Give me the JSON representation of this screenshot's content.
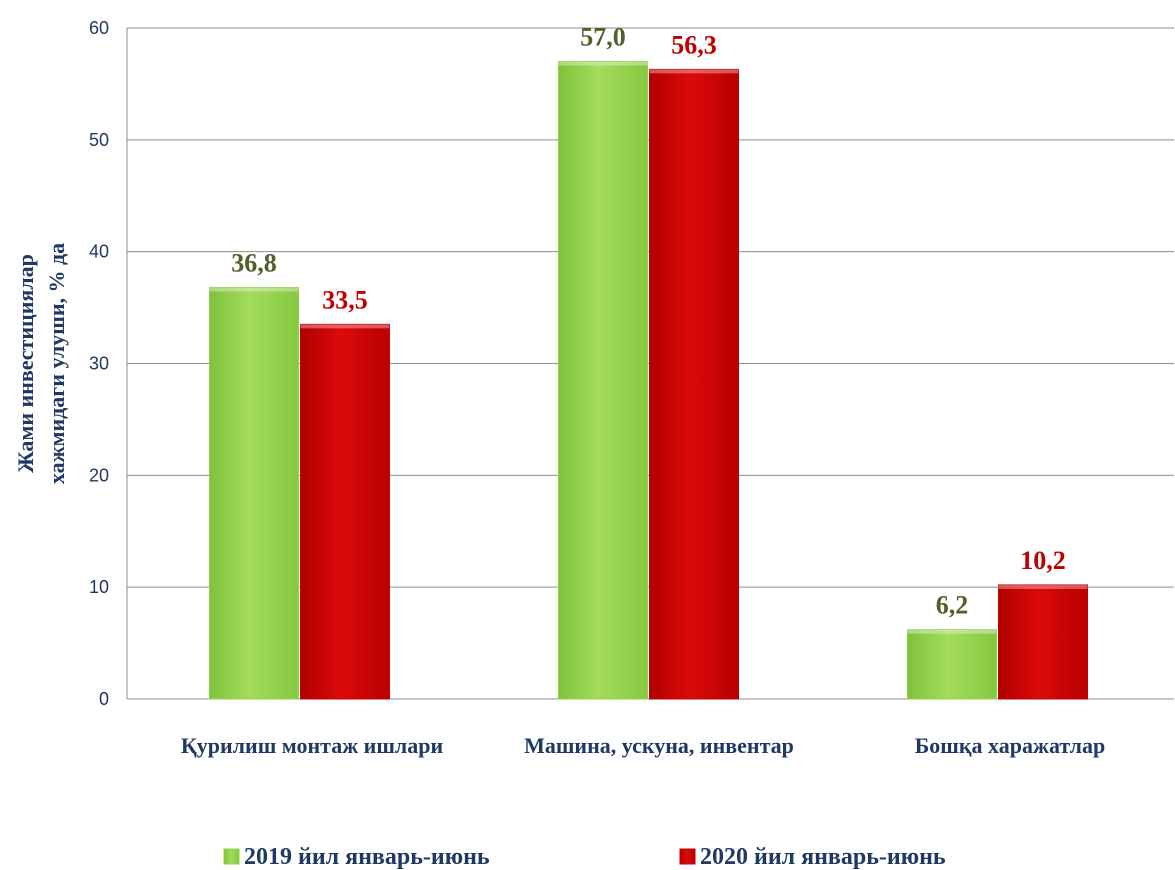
{
  "chart_data": {
    "type": "bar",
    "title": "",
    "xlabel": "",
    "ylabel_lines": [
      "Жами инвестициялар",
      "хажмидаги улуши, % да"
    ],
    "ylim": [
      0,
      60
    ],
    "yticks": [
      0,
      10,
      20,
      30,
      40,
      50,
      60
    ],
    "grid": true,
    "legend_position": "bottom",
    "categories": [
      "Қурилиш монтаж ишлари",
      "Машина, ускуна, инвентар",
      "Бошқа харажатлар"
    ],
    "series": [
      {
        "name": "2019 йил январь-июнь",
        "values": [
          36.8,
          57.0,
          6.2
        ],
        "labels": [
          "36,8",
          "57,0",
          "6,2"
        ],
        "color": "#92d050",
        "label_color": "#4f6228"
      },
      {
        "name": "2020 йил январь-июнь",
        "values": [
          33.5,
          56.3,
          10.2
        ],
        "labels": [
          "33,5",
          "56,3",
          "10,2"
        ],
        "color": "#c00000",
        "label_color": "#c00000"
      }
    ]
  }
}
